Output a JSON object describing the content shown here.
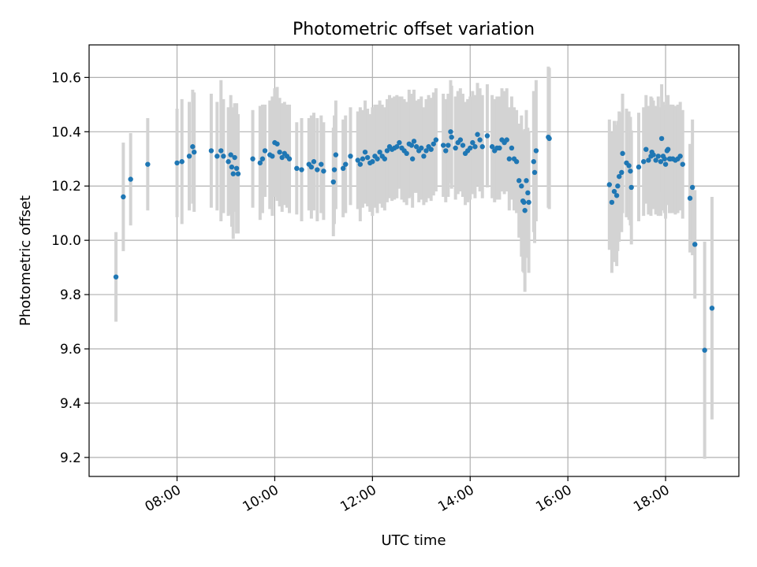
{
  "chart_data": {
    "type": "scatter",
    "title": "Photometric offset variation",
    "xlabel": "UTC time",
    "ylabel": "Photometric offset",
    "x_unit": "hours UTC",
    "xlim": [
      6.2,
      19.5
    ],
    "ylim": [
      9.13,
      10.72
    ],
    "x_ticks": [
      {
        "value": 8,
        "label": "08:00"
      },
      {
        "value": 10,
        "label": "10:00"
      },
      {
        "value": 12,
        "label": "12:00"
      },
      {
        "value": 14,
        "label": "14:00"
      },
      {
        "value": 16,
        "label": "16:00"
      },
      {
        "value": 18,
        "label": "18:00"
      }
    ],
    "y_ticks": [
      {
        "value": 9.2,
        "label": "9.2"
      },
      {
        "value": 9.4,
        "label": "9.4"
      },
      {
        "value": 9.6,
        "label": "9.6"
      },
      {
        "value": 9.8,
        "label": "9.8"
      },
      {
        "value": 10.0,
        "label": "10.0"
      },
      {
        "value": 10.2,
        "label": "10.2"
      },
      {
        "value": 10.4,
        "label": "10.4"
      },
      {
        "value": 10.6,
        "label": "10.6"
      }
    ],
    "grid": true,
    "colors": {
      "points": "#1f77b4",
      "error_bars": "#d3d3d3",
      "grid": "#b0b0b0"
    },
    "series": [
      {
        "points": [
          [
            6.75,
            9.865,
            0.165
          ],
          [
            6.9,
            10.16,
            0.2
          ],
          [
            7.05,
            10.225,
            0.17
          ],
          [
            7.4,
            10.28,
            0.17
          ],
          [
            8.0,
            10.285,
            0.2
          ],
          [
            8.1,
            10.29,
            0.23
          ],
          [
            8.25,
            10.31,
            0.2
          ],
          [
            8.32,
            10.345,
            0.21
          ],
          [
            8.35,
            10.325,
            0.22
          ],
          [
            8.7,
            10.33,
            0.21
          ],
          [
            8.82,
            10.31,
            0.2
          ],
          [
            8.9,
            10.33,
            0.26
          ],
          [
            8.95,
            10.31,
            0.21
          ],
          [
            9.05,
            10.29,
            0.2
          ],
          [
            9.1,
            10.315,
            0.22
          ],
          [
            9.12,
            10.27,
            0.22
          ],
          [
            9.15,
            10.245,
            0.24
          ],
          [
            9.18,
            10.305,
            0.2
          ],
          [
            9.22,
            10.265,
            0.24
          ],
          [
            9.25,
            10.245,
            0.22
          ],
          [
            9.55,
            10.3,
            0.18
          ],
          [
            9.7,
            10.285,
            0.21
          ],
          [
            9.75,
            10.3,
            0.2
          ],
          [
            9.8,
            10.33,
            0.17
          ],
          [
            9.9,
            10.315,
            0.2
          ],
          [
            9.95,
            10.31,
            0.22
          ],
          [
            10.0,
            10.36,
            0.2
          ],
          [
            10.05,
            10.355,
            0.21
          ],
          [
            10.1,
            10.325,
            0.2
          ],
          [
            10.15,
            10.305,
            0.2
          ],
          [
            10.2,
            10.32,
            0.19
          ],
          [
            10.25,
            10.31,
            0.19
          ],
          [
            10.3,
            10.3,
            0.2
          ],
          [
            10.45,
            10.265,
            0.17
          ],
          [
            10.55,
            10.26,
            0.19
          ],
          [
            10.7,
            10.28,
            0.17
          ],
          [
            10.75,
            10.27,
            0.19
          ],
          [
            10.8,
            10.29,
            0.18
          ],
          [
            10.87,
            10.26,
            0.19
          ],
          [
            10.95,
            10.28,
            0.18
          ],
          [
            11.0,
            10.255,
            0.18
          ],
          [
            11.2,
            10.215,
            0.2
          ],
          [
            11.22,
            10.26,
            0.2
          ],
          [
            11.25,
            10.315,
            0.2
          ],
          [
            11.4,
            10.265,
            0.18
          ],
          [
            11.45,
            10.28,
            0.18
          ],
          [
            11.55,
            10.31,
            0.18
          ],
          [
            11.7,
            10.295,
            0.18
          ],
          [
            11.75,
            10.28,
            0.21
          ],
          [
            11.8,
            10.3,
            0.18
          ],
          [
            11.85,
            10.325,
            0.19
          ],
          [
            11.9,
            10.305,
            0.18
          ],
          [
            11.95,
            10.285,
            0.18
          ],
          [
            12.0,
            10.29,
            0.2
          ],
          [
            12.05,
            10.31,
            0.19
          ],
          [
            12.1,
            10.3,
            0.2
          ],
          [
            12.15,
            10.325,
            0.19
          ],
          [
            12.2,
            10.31,
            0.19
          ],
          [
            12.25,
            10.3,
            0.19
          ],
          [
            12.3,
            10.33,
            0.19
          ],
          [
            12.35,
            10.345,
            0.19
          ],
          [
            12.4,
            10.335,
            0.19
          ],
          [
            12.45,
            10.34,
            0.19
          ],
          [
            12.5,
            10.345,
            0.19
          ],
          [
            12.55,
            10.36,
            0.17
          ],
          [
            12.6,
            10.34,
            0.19
          ],
          [
            12.65,
            10.33,
            0.19
          ],
          [
            12.7,
            10.32,
            0.19
          ],
          [
            12.75,
            10.355,
            0.2
          ],
          [
            12.8,
            10.35,
            0.19
          ],
          [
            12.82,
            10.3,
            0.18
          ],
          [
            12.85,
            10.365,
            0.19
          ],
          [
            12.9,
            10.345,
            0.17
          ],
          [
            12.95,
            10.33,
            0.19
          ],
          [
            13.0,
            10.34,
            0.19
          ],
          [
            13.05,
            10.31,
            0.18
          ],
          [
            13.1,
            10.33,
            0.19
          ],
          [
            13.15,
            10.345,
            0.19
          ],
          [
            13.2,
            10.335,
            0.19
          ],
          [
            13.25,
            10.355,
            0.19
          ],
          [
            13.3,
            10.37,
            0.19
          ],
          [
            13.45,
            10.35,
            0.19
          ],
          [
            13.5,
            10.33,
            0.19
          ],
          [
            13.55,
            10.35,
            0.19
          ],
          [
            13.6,
            10.4,
            0.19
          ],
          [
            13.62,
            10.38,
            0.19
          ],
          [
            13.7,
            10.34,
            0.19
          ],
          [
            13.75,
            10.36,
            0.19
          ],
          [
            13.8,
            10.37,
            0.19
          ],
          [
            13.85,
            10.35,
            0.19
          ],
          [
            13.9,
            10.32,
            0.19
          ],
          [
            13.95,
            10.33,
            0.19
          ],
          [
            14.0,
            10.34,
            0.19
          ],
          [
            14.05,
            10.36,
            0.19
          ],
          [
            14.1,
            10.345,
            0.19
          ],
          [
            14.15,
            10.39,
            0.19
          ],
          [
            14.2,
            10.37,
            0.19
          ],
          [
            14.25,
            10.345,
            0.19
          ],
          [
            14.35,
            10.385,
            0.19
          ],
          [
            14.45,
            10.345,
            0.19
          ],
          [
            14.5,
            10.33,
            0.19
          ],
          [
            14.55,
            10.34,
            0.19
          ],
          [
            14.6,
            10.34,
            0.19
          ],
          [
            14.65,
            10.37,
            0.19
          ],
          [
            14.7,
            10.36,
            0.19
          ],
          [
            14.75,
            10.37,
            0.19
          ],
          [
            14.8,
            10.3,
            0.19
          ],
          [
            14.85,
            10.34,
            0.19
          ],
          [
            14.9,
            10.3,
            0.19
          ],
          [
            14.95,
            10.29,
            0.19
          ],
          [
            15.0,
            10.22,
            0.21
          ],
          [
            15.05,
            10.2,
            0.26
          ],
          [
            15.08,
            10.145,
            0.26
          ],
          [
            15.1,
            10.14,
            0.26
          ],
          [
            15.12,
            10.11,
            0.3
          ],
          [
            15.15,
            10.22,
            0.26
          ],
          [
            15.18,
            10.175,
            0.24
          ],
          [
            15.2,
            10.14,
            0.26
          ],
          [
            15.3,
            10.29,
            0.26
          ],
          [
            15.32,
            10.25,
            0.26
          ],
          [
            15.35,
            10.33,
            0.26
          ],
          [
            15.6,
            10.38,
            0.26
          ],
          [
            15.62,
            10.375,
            0.26
          ],
          [
            16.85,
            10.205,
            0.24
          ],
          [
            16.9,
            10.14,
            0.26
          ],
          [
            16.95,
            10.18,
            0.26
          ],
          [
            17.0,
            10.165,
            0.26
          ],
          [
            17.02,
            10.2,
            0.24
          ],
          [
            17.05,
            10.235,
            0.24
          ],
          [
            17.1,
            10.25,
            0.22
          ],
          [
            17.12,
            10.32,
            0.22
          ],
          [
            17.2,
            10.285,
            0.2
          ],
          [
            17.25,
            10.275,
            0.2
          ],
          [
            17.28,
            10.255,
            0.2
          ],
          [
            17.3,
            10.195,
            0.21
          ],
          [
            17.45,
            10.27,
            0.2
          ],
          [
            17.55,
            10.29,
            0.2
          ],
          [
            17.6,
            10.335,
            0.2
          ],
          [
            17.65,
            10.295,
            0.2
          ],
          [
            17.7,
            10.31,
            0.22
          ],
          [
            17.72,
            10.325,
            0.2
          ],
          [
            17.75,
            10.315,
            0.2
          ],
          [
            17.8,
            10.295,
            0.2
          ],
          [
            17.85,
            10.31,
            0.22
          ],
          [
            17.9,
            10.29,
            0.2
          ],
          [
            17.92,
            10.375,
            0.2
          ],
          [
            17.95,
            10.31,
            0.2
          ],
          [
            17.98,
            10.3,
            0.2
          ],
          [
            18.0,
            10.28,
            0.2
          ],
          [
            18.03,
            10.33,
            0.2
          ],
          [
            18.05,
            10.335,
            0.2
          ],
          [
            18.08,
            10.3,
            0.2
          ],
          [
            18.1,
            10.3,
            0.2
          ],
          [
            18.15,
            10.3,
            0.2
          ],
          [
            18.2,
            10.295,
            0.2
          ],
          [
            18.25,
            10.3,
            0.2
          ],
          [
            18.3,
            10.31,
            0.2
          ],
          [
            18.35,
            10.28,
            0.2
          ],
          [
            18.5,
            10.155,
            0.2
          ],
          [
            18.55,
            10.195,
            0.25
          ],
          [
            18.6,
            9.985,
            0.2
          ],
          [
            18.8,
            9.595,
            0.4
          ],
          [
            18.95,
            9.75,
            0.41
          ]
        ]
      }
    ]
  }
}
